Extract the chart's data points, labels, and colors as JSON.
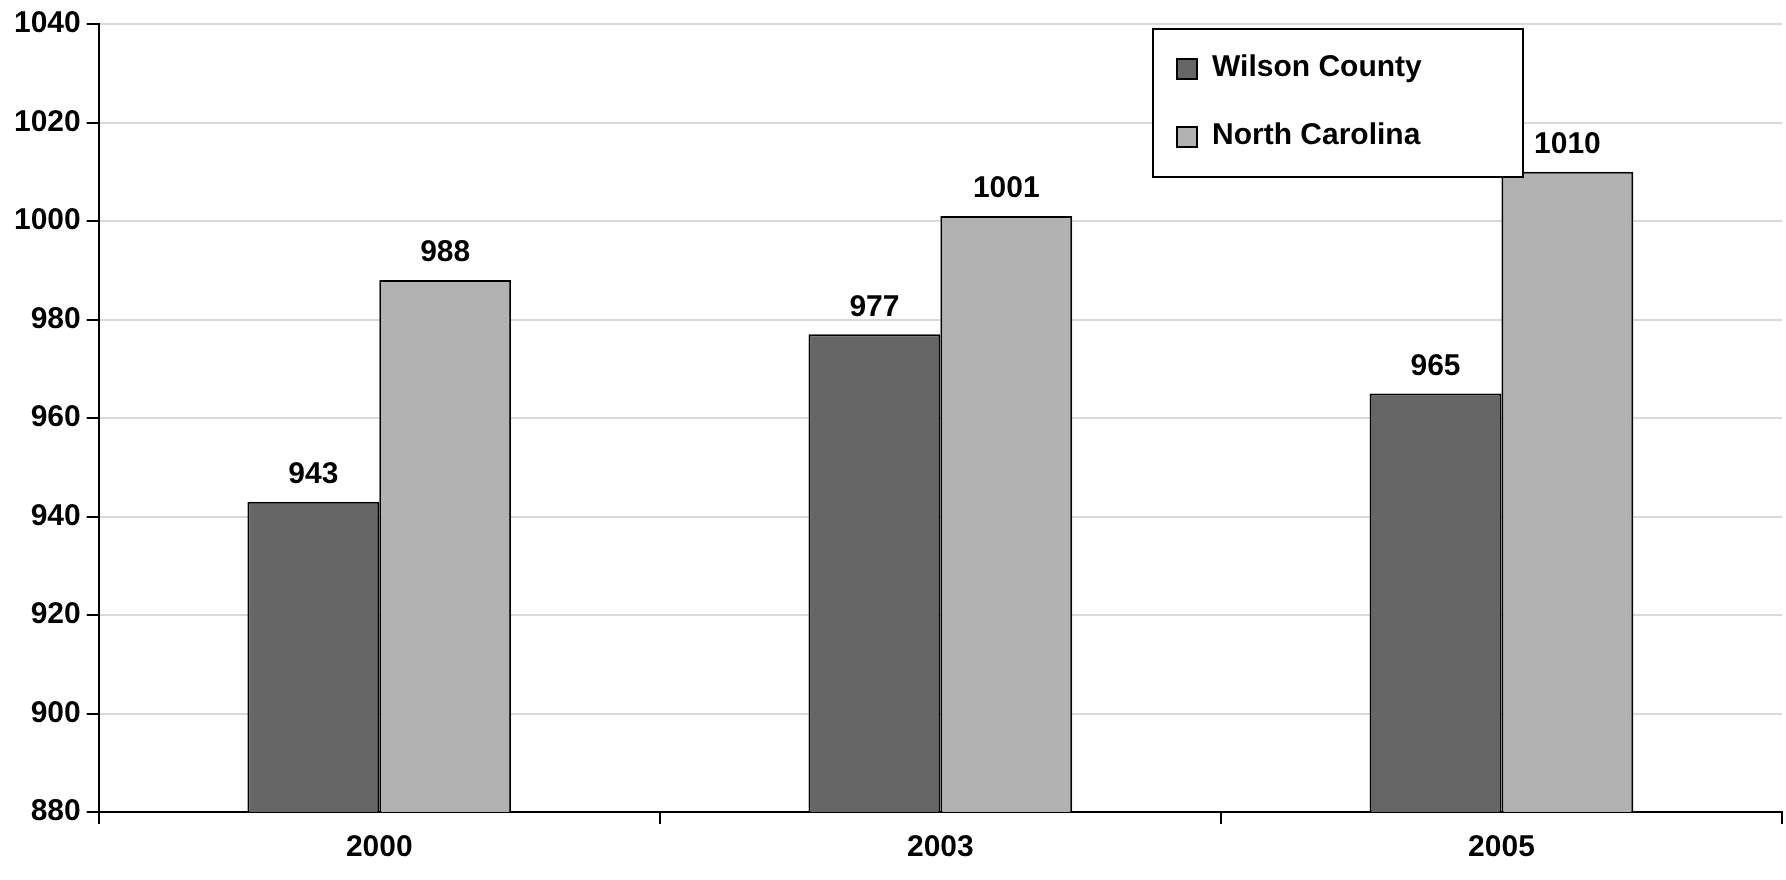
{
  "chart_data": {
    "type": "bar",
    "categories": [
      "2000",
      "2003",
      "2005"
    ],
    "series": [
      {
        "name": "Wilson County",
        "color": "#666666",
        "values": [
          943,
          977,
          965
        ]
      },
      {
        "name": "North Carolina",
        "color": "#b2b2b2",
        "values": [
          988,
          1001,
          1010
        ]
      }
    ],
    "ylim": [
      880,
      1040
    ],
    "yticks": [
      880,
      900,
      920,
      940,
      960,
      980,
      1000,
      1020,
      1040
    ],
    "grid": "y",
    "legend": "top right",
    "data_labels": true
  }
}
